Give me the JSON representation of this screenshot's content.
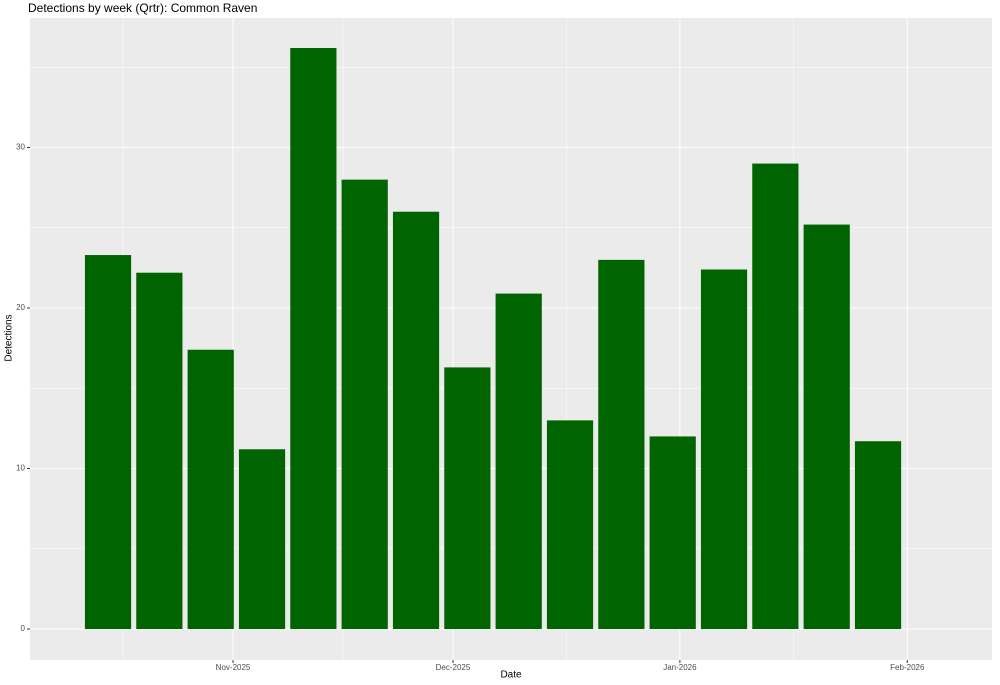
{
  "chart_data": {
    "type": "bar",
    "title": "Detections by week (Qrtr): Common Raven",
    "x_label": "Date",
    "y_label": "Detections",
    "categories": [
      null,
      null,
      null,
      null,
      null,
      null,
      null,
      null,
      null,
      null,
      null,
      null,
      null,
      null,
      null,
      null
    ],
    "values": [
      23.3,
      22.2,
      17.4,
      11.2,
      36.2,
      28.0,
      26.0,
      16.3,
      20.9,
      13.0,
      23.0,
      12.0,
      22.4,
      29.0,
      25.2,
      11.7
    ],
    "color": "#006400",
    "xlim": [
      -1.52,
      17.22
    ],
    "xticks": [
      {
        "value": 2.435,
        "label": "Nov-2025"
      },
      {
        "value": 6.72,
        "label": "Dec-2025"
      },
      {
        "value": 11.14,
        "label": "Jan-2026"
      },
      {
        "value": 15.57,
        "label": "Feb-2026"
      }
    ],
    "ylim": [
      -1.93,
      38.07
    ],
    "yticks": [
      0,
      10,
      20,
      30
    ],
    "grid": true
  }
}
